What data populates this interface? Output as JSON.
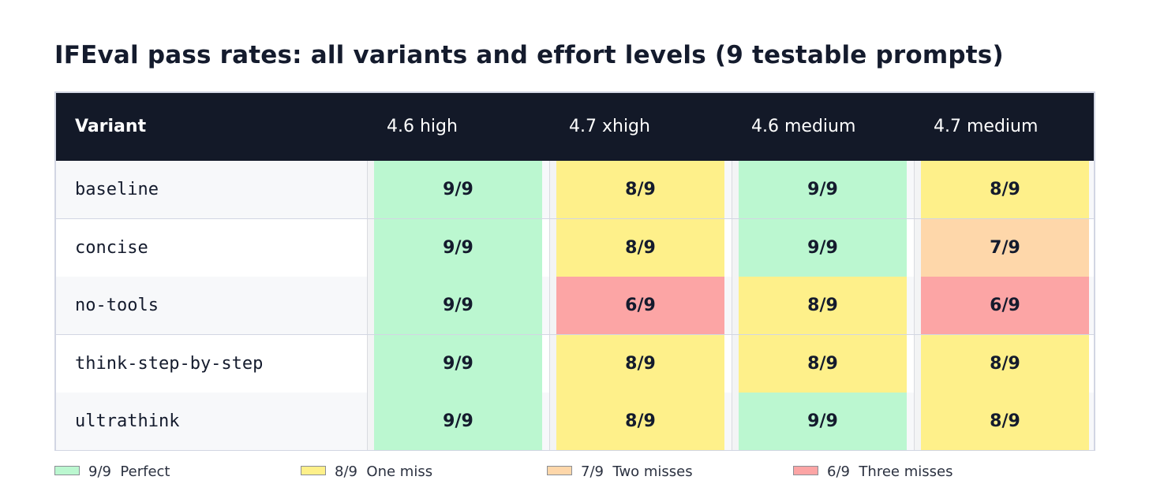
{
  "chart_data": {
    "type": "table",
    "title": "IFEval pass rates: all variants and effort levels (9 testable prompts)",
    "header": {
      "variant_label": "Variant",
      "columns": [
        "4.6 high",
        "4.7 xhigh",
        "4.6 medium",
        "4.7 medium"
      ]
    },
    "rows": [
      {
        "variant": "baseline",
        "values": [
          "9/9",
          "8/9",
          "9/9",
          "8/9"
        ]
      },
      {
        "variant": "concise",
        "values": [
          "9/9",
          "8/9",
          "9/9",
          "7/9"
        ]
      },
      {
        "variant": "no-tools",
        "values": [
          "9/9",
          "6/9",
          "8/9",
          "6/9"
        ]
      },
      {
        "variant": "think-step-by-step",
        "values": [
          "9/9",
          "8/9",
          "8/9",
          "8/9"
        ]
      },
      {
        "variant": "ultrathink",
        "values": [
          "9/9",
          "8/9",
          "9/9",
          "8/9"
        ]
      }
    ],
    "colors": {
      "9/9": "#bbf7d0",
      "8/9": "#fef08a",
      "7/9": "#fed7aa",
      "6/9": "#fca5a5"
    },
    "legend": [
      {
        "key": "9/9",
        "label": "Perfect",
        "color": "#bbf7d0"
      },
      {
        "key": "8/9",
        "label": "One miss",
        "color": "#fef08a"
      },
      {
        "key": "7/9",
        "label": "Two misses",
        "color": "#fed7aa"
      },
      {
        "key": "6/9",
        "label": "Three misses",
        "color": "#fca5a5"
      }
    ]
  }
}
